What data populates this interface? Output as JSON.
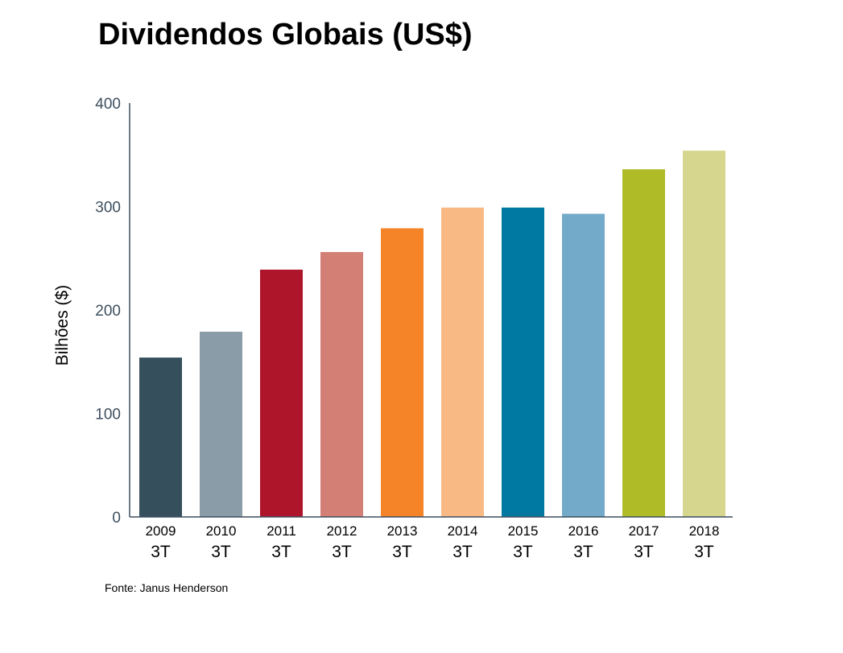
{
  "chart_data": {
    "type": "bar",
    "title": "Dividendos Globais (US$)",
    "ylabel": "Bilhões ($)",
    "xlabel": "",
    "ylim": [
      0,
      400
    ],
    "yticks": [
      0,
      100,
      200,
      300,
      400
    ],
    "categories": [
      {
        "year": "2009",
        "quarter": "3T"
      },
      {
        "year": "2010",
        "quarter": "3T"
      },
      {
        "year": "2011",
        "quarter": "3T"
      },
      {
        "year": "2012",
        "quarter": "3T"
      },
      {
        "year": "2013",
        "quarter": "3T"
      },
      {
        "year": "2014",
        "quarter": "3T"
      },
      {
        "year": "2015",
        "quarter": "3T"
      },
      {
        "year": "2016",
        "quarter": "3T"
      },
      {
        "year": "2017",
        "quarter": "3T"
      },
      {
        "year": "2018",
        "quarter": "3T"
      }
    ],
    "values": [
      154,
      179,
      239,
      256,
      279,
      299,
      299,
      293,
      336,
      354
    ],
    "colors": [
      "#354f5c",
      "#8a9ca7",
      "#ae152a",
      "#d47f75",
      "#f48427",
      "#f8b985",
      "#0079a2",
      "#74aac9",
      "#afbc27",
      "#d6d68e"
    ],
    "axis_color": "#3d4f5e",
    "tick_label_color": "#3d4f5e",
    "grid": false,
    "legend": "none",
    "source": "Fonte: Janus Henderson"
  }
}
